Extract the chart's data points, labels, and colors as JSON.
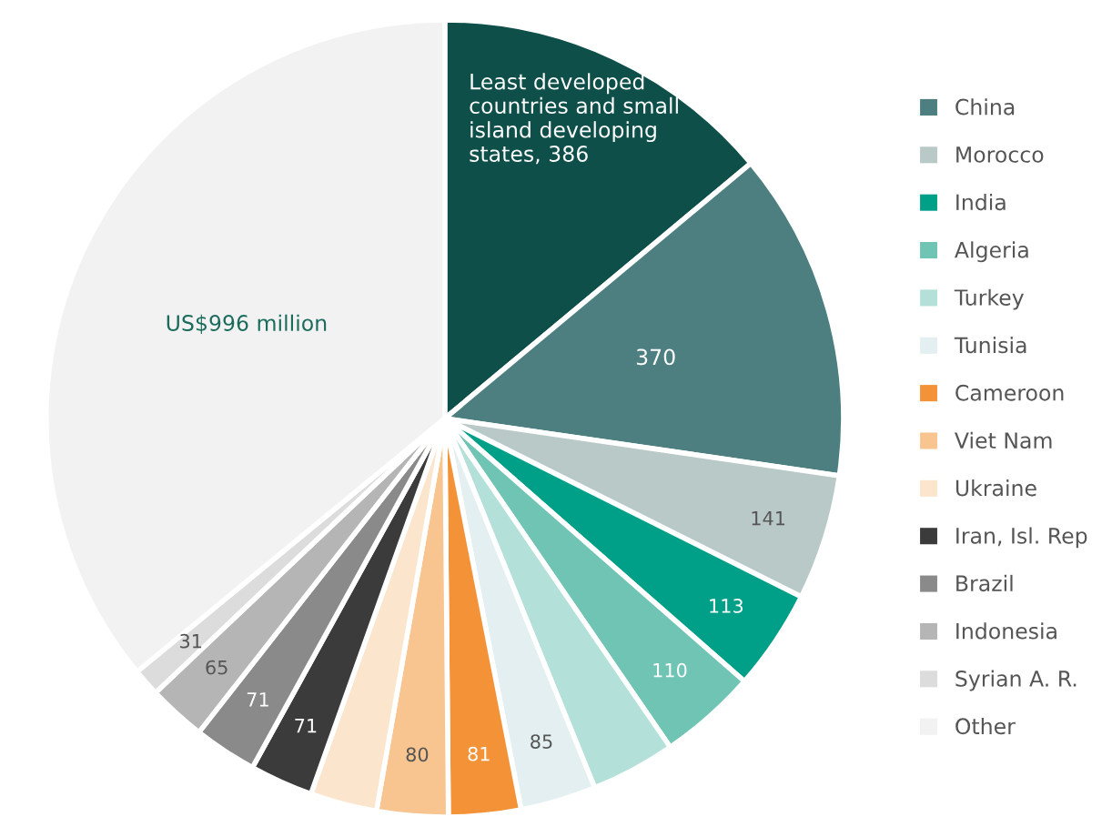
{
  "chart_data": {
    "type": "pie",
    "categories": [
      null,
      "China",
      "Morocco",
      "India",
      "Algeria",
      "Turkey",
      "Tunisia",
      "Cameroon",
      "Viet Nam",
      "Ukraine",
      "Iran, Isl. Rep",
      "Brazil",
      "Indonesia",
      "Syrian A. R.",
      "Other"
    ],
    "values": [
      386,
      370,
      141,
      113,
      110,
      95,
      85,
      81,
      80,
      75,
      71,
      71,
      65,
      31,
      996
    ],
    "colors": [
      "#0e4f4a",
      "#4d7f80",
      "#b9c9c7",
      "#00a088",
      "#6fc4b4",
      "#b3e0d8",
      "#e3eff0",
      "#f39237",
      "#f8c48f",
      "#fbe5cc",
      "#3b3b3b",
      "#8a8a8a",
      "#b5b5b5",
      "#dcdcdc",
      "#f2f2f2"
    ],
    "value_labels": [
      "Least developed\ncountries and small\nisland developing\nstates, 386",
      "370",
      "141",
      "113",
      "110",
      null,
      "85",
      "81",
      "80",
      null,
      "71",
      "71",
      "65",
      "31",
      "US$996 million"
    ],
    "legend": "right"
  }
}
